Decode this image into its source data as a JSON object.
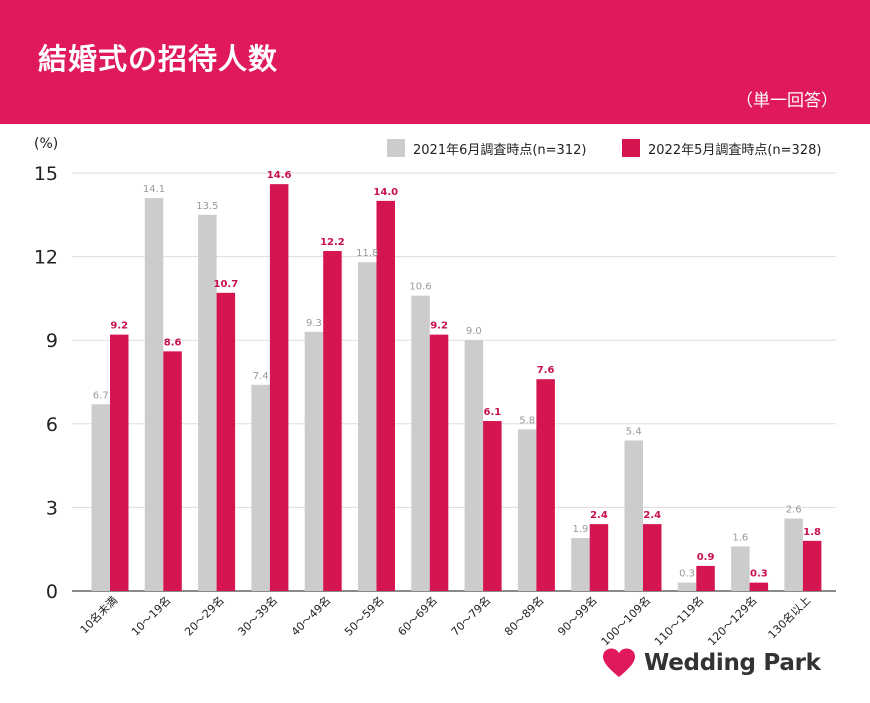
{
  "header": {
    "title": "結婚式の招待人数",
    "note": "（単一回答）"
  },
  "logo": {
    "name": "Wedding Park"
  },
  "colors": {
    "header_bg": "#e0195a",
    "series_2021": "#cccccc",
    "series_2022": "#d4154f",
    "label_2021": "#999999",
    "label_2022": "#c8104a"
  },
  "chart_data": {
    "type": "bar",
    "unit_label": "(%)",
    "ylim": [
      0,
      15
    ],
    "yticks": [
      0,
      3,
      6,
      9,
      12,
      15
    ],
    "grid": true,
    "legend_position": "top-right",
    "categories": [
      "10名未満",
      "10～19名",
      "20～29名",
      "30～39名",
      "40～49名",
      "50～59名",
      "60～69名",
      "70～79名",
      "80～89名",
      "90～99名",
      "100～109名",
      "110～119名",
      "120～129名",
      "130名以上"
    ],
    "series": [
      {
        "name": "2021年6月調査時点(n=312)",
        "values": [
          6.7,
          14.1,
          13.5,
          7.4,
          9.3,
          11.8,
          10.6,
          9.0,
          5.8,
          1.9,
          5.4,
          0.3,
          1.6,
          2.6
        ]
      },
      {
        "name": "2022年5月調査時点(n=328)",
        "values": [
          9.2,
          8.6,
          10.7,
          14.6,
          12.2,
          14.0,
          9.2,
          6.1,
          7.6,
          2.4,
          2.4,
          0.9,
          0.3,
          1.8
        ]
      }
    ]
  }
}
